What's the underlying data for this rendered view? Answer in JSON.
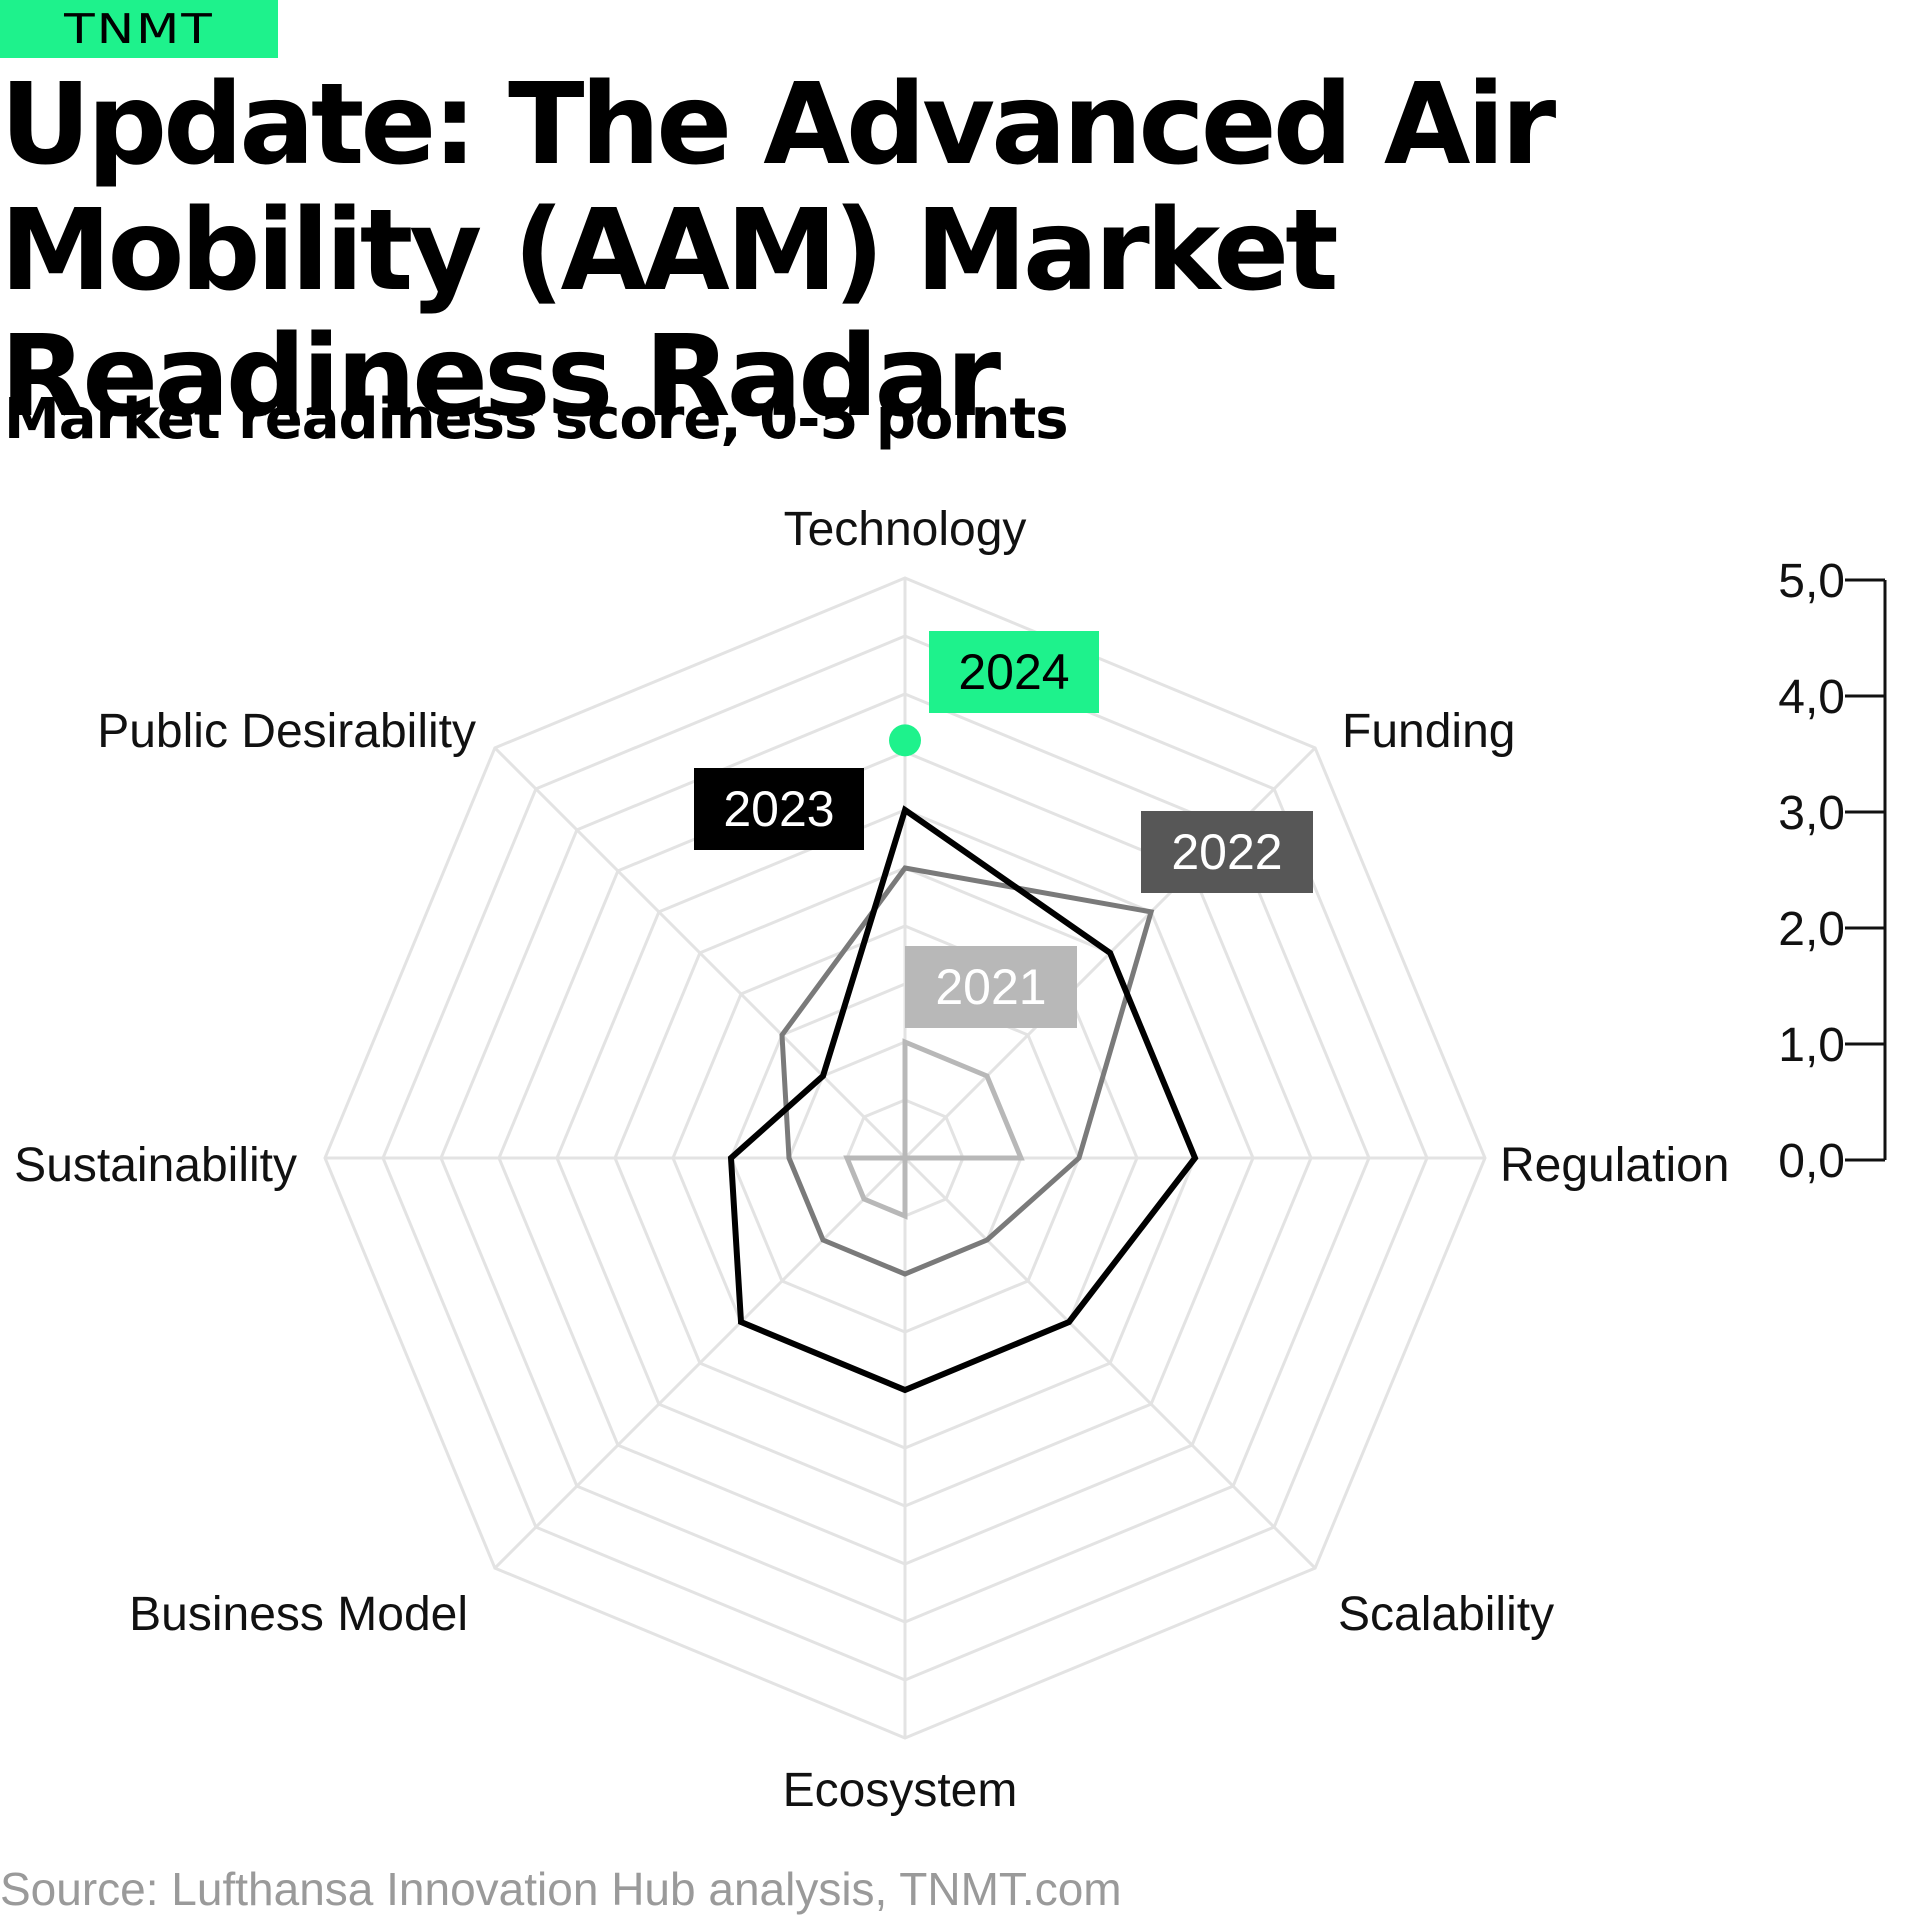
{
  "brand": {
    "logo_text": "TNMT",
    "accent_color": "#1ef28c"
  },
  "header": {
    "title": "Update: The Advanced Air Mobility (AAM) Market Readiness Radar",
    "subtitle": "Market readiness score, 0-5 points"
  },
  "footer": {
    "source": "Source: Lufthansa Innovation Hub analysis, TNMT.com"
  },
  "chart_data": {
    "type": "radar",
    "title": "Update: The Advanced Air Mobility (AAM) Market Readiness Radar",
    "subtitle": "Market readiness score, 0-5 points",
    "axes": [
      "Technology",
      "Funding",
      "Regulation",
      "Scalability",
      "Ecosystem",
      "Business Model",
      "Sustainability",
      "Public Desirability"
    ],
    "range": [
      0,
      5
    ],
    "scale_ticks": [
      "5,0",
      "4,0",
      "3,0",
      "2,0",
      "1,0",
      "0,0"
    ],
    "grid": true,
    "series": [
      {
        "name": "2021",
        "color": "#b8b8b8",
        "label_text_color": "#ffffff",
        "values": [
          1.0,
          1.0,
          1.0,
          0.0,
          0.5,
          0.5,
          0.5,
          0.0
        ]
      },
      {
        "name": "2022",
        "color": "#7a7a7a",
        "label_bg": "#575757",
        "label_text_color": "#ffffff",
        "values": [
          2.5,
          3.0,
          1.5,
          1.0,
          1.0,
          1.0,
          1.0,
          1.5
        ]
      },
      {
        "name": "2023",
        "color": "#000000",
        "label_bg": "#000000",
        "label_text_color": "#ffffff",
        "values": [
          3.0,
          2.5,
          2.5,
          2.0,
          2.0,
          2.0,
          1.5,
          1.0
        ]
      },
      {
        "name": "2024",
        "color": "#1ef28c",
        "label_bg": "#1ef28c",
        "label_text_color": "#000000",
        "values": [
          3.6
        ],
        "note": "Technology only"
      }
    ]
  }
}
